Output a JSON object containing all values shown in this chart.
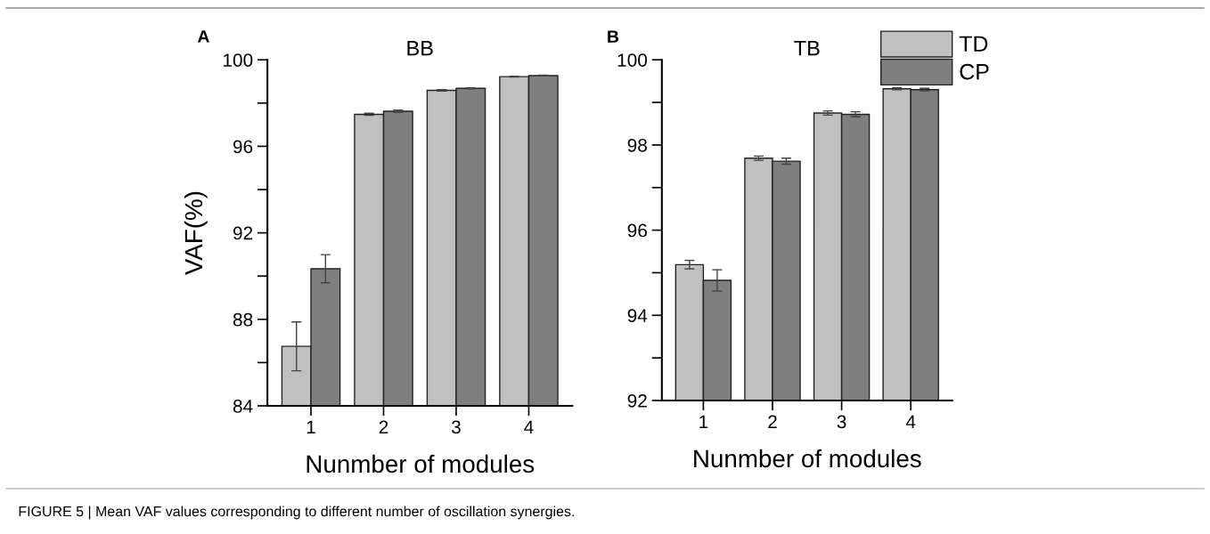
{
  "chart_data": [
    {
      "type": "bar",
      "title": "BB",
      "xlabel": "Nunmber of modules",
      "ylabel": "VAF(%)",
      "categories": [
        "1",
        "2",
        "3",
        "4"
      ],
      "series": [
        {
          "color": "#c0c0c0",
          "values": [
            86.75,
            97.48,
            98.59,
            99.22
          ],
          "errors": [
            1.13,
            0.05,
            0.03,
            0.02
          ]
        },
        {
          "color": "#7f7f7f",
          "values": [
            90.34,
            97.62,
            98.68,
            99.27
          ],
          "errors": [
            0.65,
            0.05,
            0.02,
            0.02
          ]
        }
      ],
      "ylim": [
        84,
        100
      ],
      "yticks": [
        84,
        {
          "value": 86,
          "label": null
        },
        88,
        {
          "value": 90,
          "label": null
        },
        92,
        {
          "value": 94,
          "label": null
        },
        96,
        {
          "value": 98,
          "label": null
        },
        100
      ],
      "grid": false,
      "legend": false,
      "annotations": [
        "A",
        "FIGURE 5 | Mean VAF values corresponding to different number of oscillation synergies."
      ]
    },
    {
      "type": "bar",
      "title": "TB",
      "xlabel": "Nunmber of modules",
      "categories": [
        "1",
        "2",
        "3",
        "4"
      ],
      "series": [
        {
          "name": "TD",
          "color": "#c0c0c0",
          "values": [
            95.19,
            97.69,
            98.75,
            99.32
          ],
          "errors": [
            0.1,
            0.05,
            0.05,
            0.02
          ]
        },
        {
          "name": "CP",
          "color": "#7f7f7f",
          "values": [
            94.82,
            97.62,
            98.72,
            99.3
          ],
          "errors": [
            0.25,
            0.07,
            0.06,
            0.03
          ]
        }
      ],
      "ylim": [
        92,
        100
      ],
      "yticks": [
        92,
        {
          "value": 93,
          "label": null
        },
        94,
        {
          "value": 95,
          "label": null
        },
        96,
        {
          "value": 97,
          "label": null
        },
        98,
        {
          "value": 99,
          "label": null
        },
        100
      ],
      "grid": false,
      "legend": "top right",
      "annotations": [
        "B"
      ]
    }
  ]
}
